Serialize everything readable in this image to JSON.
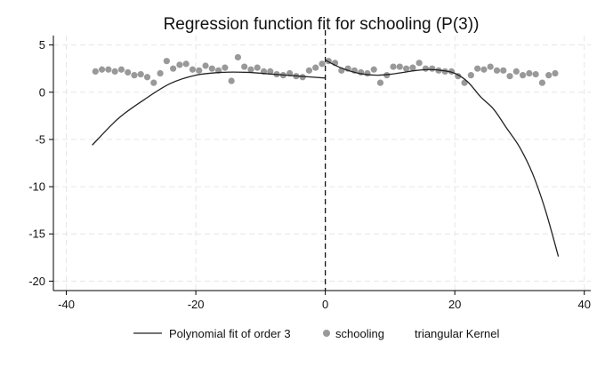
{
  "chart_data": {
    "type": "scatter",
    "title": "Regression function fit for schooling (P(3))",
    "xlabel": "",
    "ylabel": "",
    "xlim": [
      -42,
      41
    ],
    "ylim": [
      -21,
      6
    ],
    "xticks": [
      -40,
      -20,
      0,
      20,
      40
    ],
    "yticks": [
      5,
      0,
      -5,
      -10,
      -15,
      -20
    ],
    "grid": true,
    "cutoff": 0,
    "legend_position": "bottom",
    "legend": [
      {
        "label": "Polynomial fit of order 3",
        "kind": "line"
      },
      {
        "label": "schooling",
        "kind": "marker"
      },
      {
        "label": "triangular Kernel",
        "kind": "none"
      }
    ],
    "series": [
      {
        "name": "schooling",
        "kind": "scatter",
        "color": "#999999",
        "x": [
          -35.5,
          -34.5,
          -33.5,
          -32.5,
          -31.5,
          -30.5,
          -29.5,
          -28.5,
          -27.5,
          -26.5,
          -25.5,
          -24.5,
          -23.5,
          -22.5,
          -21.5,
          -20.5,
          -19.5,
          -18.5,
          -17.5,
          -16.5,
          -15.5,
          -14.5,
          -13.5,
          -12.5,
          -11.5,
          -10.5,
          -9.5,
          -8.5,
          -7.5,
          -6.5,
          -5.5,
          -4.5,
          -3.5,
          -2.5,
          -1.5,
          -0.5,
          0.5,
          1.5,
          2.5,
          3.5,
          4.5,
          5.5,
          6.5,
          7.5,
          8.5,
          9.5,
          10.5,
          11.5,
          12.5,
          13.5,
          14.5,
          15.5,
          16.5,
          17.5,
          18.5,
          19.5,
          20.5,
          21.5,
          22.5,
          23.5,
          24.5,
          25.5,
          26.5,
          27.5,
          28.5,
          29.5,
          30.5,
          31.5,
          32.5,
          33.5,
          34.5,
          35.5
        ],
        "y": [
          2.2,
          2.4,
          2.4,
          2.2,
          2.4,
          2.1,
          1.8,
          1.9,
          1.6,
          1.0,
          2.0,
          3.3,
          2.5,
          2.9,
          3.0,
          2.4,
          2.3,
          2.8,
          2.5,
          2.3,
          2.6,
          1.2,
          3.7,
          2.7,
          2.4,
          2.6,
          2.2,
          2.2,
          1.9,
          1.8,
          2.0,
          1.7,
          1.6,
          2.3,
          2.6,
          3.0,
          3.3,
          3.1,
          2.3,
          2.5,
          2.3,
          2.1,
          2.0,
          2.4,
          1.0,
          1.8,
          2.7,
          2.7,
          2.5,
          2.6,
          3.1,
          2.5,
          2.5,
          2.3,
          2.2,
          2.2,
          1.7,
          1.0,
          1.8,
          2.5,
          2.4,
          2.7,
          2.3,
          2.3,
          1.7,
          2.2,
          1.8,
          2.0,
          1.9,
          1.0,
          1.8,
          2.0
        ]
      },
      {
        "name": "Polynomial fit of order 3",
        "kind": "line",
        "color": "#222222",
        "segments": [
          {
            "x": [
              -36,
              -32,
              -28,
              -24,
              -20,
              -16,
              -12,
              -8,
              -4,
              0
            ],
            "y": [
              -5.6,
              -2.8,
              -0.8,
              0.9,
              1.8,
              2.1,
              2.1,
              1.9,
              1.7,
              1.5
            ]
          },
          {
            "x": [
              0,
              2,
              4,
              6,
              8,
              10,
              12,
              14,
              16,
              18,
              20,
              22,
              24,
              26,
              28,
              30,
              32,
              34,
              36
            ],
            "y": [
              3.4,
              2.7,
              2.2,
              1.9,
              1.8,
              1.9,
              2.1,
              2.3,
              2.4,
              2.3,
              2.0,
              1.1,
              -0.5,
              -1.8,
              -3.8,
              -5.8,
              -8.6,
              -12.5,
              -17.4
            ]
          }
        ]
      }
    ]
  }
}
